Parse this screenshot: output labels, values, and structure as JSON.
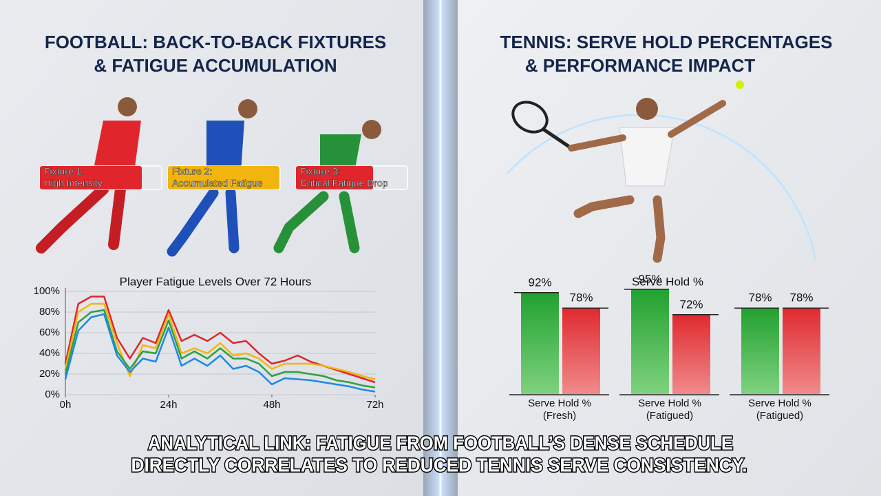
{
  "left_title": [
    "FOOTBALL: BACK-TO-BACK FIXTURES",
    "& FATIGUE ACCUMULATION"
  ],
  "right_title": [
    "TENNIS: SERVE HOLD PERCENTAGES",
    "& PERFORMANCE IMPACT"
  ],
  "fixtures": [
    {
      "title": "Fixture 1:",
      "subtitle": "High Intensity",
      "color": "#e0262c"
    },
    {
      "title": "Fixture 2:",
      "subtitle": "Accumulated Fatigue",
      "color": "#f2b50f"
    },
    {
      "title": "Fixture 3:",
      "subtitle": "Critical Fatigue Drop",
      "color": "#e0262c"
    }
  ],
  "caption": [
    "ANALYTICAL LINK: FATIGUE FROM FOOTBALL’S DENSE SCHEDULE",
    "DIRECTLY CORRELATES TO REDUCED TENNIS SERVE CONSISTENCY."
  ],
  "chart_data": [
    {
      "type": "line",
      "title": "Player Fatigue Levels Over 72 Hours",
      "x": [
        0,
        3,
        6,
        9,
        12,
        15,
        18,
        21,
        24,
        27,
        30,
        33,
        36,
        39,
        42,
        45,
        48,
        51,
        54,
        57,
        60,
        63,
        66,
        69,
        72
      ],
      "series": [
        {
          "color": "#e0262c",
          "values": [
            30,
            88,
            95,
            95,
            55,
            35,
            55,
            50,
            82,
            52,
            58,
            52,
            60,
            50,
            52,
            40,
            30,
            33,
            38,
            32,
            28,
            24,
            20,
            16,
            12
          ]
        },
        {
          "color": "#f2b50f",
          "values": [
            25,
            80,
            88,
            88,
            50,
            18,
            48,
            45,
            78,
            40,
            45,
            40,
            50,
            38,
            40,
            35,
            25,
            30,
            30,
            30,
            28,
            25,
            22,
            18,
            15
          ]
        },
        {
          "color": "#2ea043",
          "values": [
            20,
            70,
            80,
            82,
            42,
            25,
            42,
            40,
            72,
            35,
            42,
            35,
            45,
            35,
            35,
            30,
            18,
            22,
            22,
            20,
            18,
            14,
            12,
            9,
            7
          ]
        },
        {
          "color": "#1e88e5",
          "values": [
            15,
            62,
            75,
            78,
            38,
            22,
            35,
            32,
            65,
            28,
            35,
            28,
            38,
            25,
            28,
            22,
            10,
            16,
            15,
            14,
            12,
            10,
            8,
            5,
            3
          ]
        }
      ],
      "xlim": [
        0,
        72
      ],
      "xticks": [
        {
          "value": 0,
          "label": "0h"
        },
        {
          "value": 24,
          "label": "24h"
        },
        {
          "value": 48,
          "label": "48h"
        },
        {
          "value": 72,
          "label": "72h"
        }
      ],
      "ylim": [
        0,
        100
      ],
      "yticks": [
        {
          "value": 0,
          "label": "0%"
        },
        {
          "value": 20,
          "label": "20%"
        },
        {
          "value": 40,
          "label": "40%"
        },
        {
          "value": 60,
          "label": "60%"
        },
        {
          "value": 80,
          "label": "80%"
        },
        {
          "value": 100,
          "label": "100%"
        }
      ],
      "grid": true
    },
    {
      "type": "bar",
      "title": "Serve Hold %",
      "categories": [
        "Serve Hold %\n(Fresh)",
        "Serve Hold %\n(Fatigued)",
        "Serve Hold %\n(Fatigued)"
      ],
      "series": [
        {
          "color": "#2ea043",
          "values": [
            92,
            95,
            78
          ],
          "value_labels": [
            "92%",
            "95%",
            "78%"
          ]
        },
        {
          "color": "#e0393e",
          "values": [
            78,
            72,
            78
          ],
          "value_labels": [
            "78%",
            "72%",
            "78%"
          ]
        }
      ]
    }
  ]
}
